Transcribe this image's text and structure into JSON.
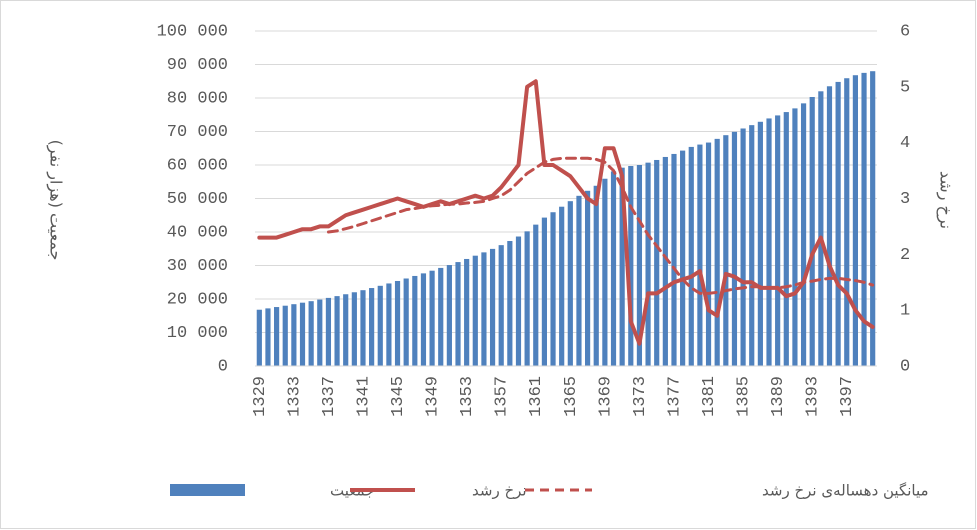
{
  "chart_data": {
    "type": "bar",
    "y_axis_label": "جمعیت (هزار نفر)",
    "y2_axis_label": "نرخ رشد",
    "categories": [
      "1329",
      null,
      null,
      null,
      "1333",
      null,
      null,
      null,
      "1337",
      null,
      null,
      null,
      "1341",
      null,
      null,
      null,
      "1345",
      null,
      null,
      null,
      "1349",
      null,
      null,
      null,
      "1353",
      null,
      null,
      null,
      "1357",
      null,
      null,
      null,
      "1361",
      null,
      null,
      null,
      "1365",
      null,
      null,
      null,
      "1369",
      null,
      null,
      null,
      "1373",
      null,
      null,
      null,
      "1377",
      null,
      null,
      null,
      "1381",
      null,
      null,
      null,
      "1385",
      null,
      null,
      null,
      "1389",
      null,
      null,
      null,
      "1393",
      null,
      null,
      null,
      "1397",
      null,
      null,
      null
    ],
    "series": [
      {
        "name": "جمعیت",
        "type": "bar",
        "color": "#4f81bd",
        "values": [
          16800,
          17200,
          17600,
          18000,
          18450,
          18900,
          19350,
          19830,
          20330,
          20860,
          21420,
          22010,
          22630,
          23270,
          23940,
          24640,
          25380,
          26120,
          26880,
          27650,
          28450,
          29280,
          30130,
          31020,
          31950,
          32930,
          33920,
          34960,
          36080,
          37310,
          38650,
          40200,
          42200,
          44300,
          45900,
          47550,
          49200,
          50800,
          52300,
          53800,
          55900,
          58100,
          59200,
          59700,
          60000,
          60700,
          61500,
          62400,
          63300,
          64300,
          65400,
          66100,
          66700,
          67800,
          68900,
          69900,
          70900,
          71900,
          72900,
          73900,
          74800,
          75800,
          76900,
          78400,
          80300,
          82000,
          83500,
          84800,
          85900,
          86800,
          87500,
          88000
        ]
      },
      {
        "name": "نرخ رشد",
        "type": "line",
        "axis": "y2",
        "color": "#c0504d",
        "dash": false,
        "values": [
          2.3,
          2.3,
          2.3,
          2.35,
          2.4,
          2.45,
          2.45,
          2.5,
          2.5,
          2.6,
          2.7,
          2.75,
          2.8,
          2.85,
          2.9,
          2.95,
          3.0,
          2.95,
          2.9,
          2.85,
          2.9,
          2.95,
          2.9,
          2.95,
          3.0,
          3.05,
          3.0,
          3.05,
          3.2,
          3.4,
          3.6,
          5.0,
          5.1,
          3.6,
          3.6,
          3.5,
          3.4,
          3.2,
          3.0,
          2.9,
          3.9,
          3.9,
          3.4,
          0.8,
          0.4,
          1.3,
          1.3,
          1.4,
          1.5,
          1.55,
          1.6,
          1.7,
          1.0,
          0.9,
          1.65,
          1.6,
          1.5,
          1.5,
          1.4,
          1.4,
          1.4,
          1.25,
          1.3,
          1.5,
          2.0,
          2.3,
          1.8,
          1.45,
          1.3,
          1.0,
          0.8,
          0.7
        ]
      },
      {
        "name": "میانگین دهساله‌ی نرخ رشد",
        "type": "line",
        "axis": "y2",
        "color": "#c0504d",
        "dash": true,
        "values": [
          null,
          null,
          null,
          null,
          null,
          null,
          null,
          null,
          2.4,
          2.42,
          2.46,
          2.5,
          2.55,
          2.6,
          2.65,
          2.7,
          2.75,
          2.8,
          2.82,
          2.85,
          2.87,
          2.88,
          2.9,
          2.9,
          2.92,
          2.93,
          2.95,
          3.0,
          3.05,
          3.15,
          3.3,
          3.45,
          3.55,
          3.65,
          3.7,
          3.72,
          3.72,
          3.72,
          3.72,
          3.7,
          3.65,
          3.5,
          3.2,
          2.85,
          2.6,
          2.35,
          2.15,
          1.95,
          1.75,
          1.55,
          1.4,
          1.3,
          1.3,
          1.32,
          1.35,
          1.38,
          1.4,
          1.42,
          1.42,
          1.4,
          1.4,
          1.42,
          1.45,
          1.5,
          1.52,
          1.55,
          1.57,
          1.57,
          1.55,
          1.53,
          1.5,
          1.45
        ]
      }
    ],
    "ylim": [
      0,
      100000
    ],
    "yticks": [
      {
        "value": 0,
        "label": "0"
      },
      {
        "value": 10000,
        "label": "10 000"
      },
      {
        "value": 20000,
        "label": "20 000"
      },
      {
        "value": 30000,
        "label": "30 000"
      },
      {
        "value": 40000,
        "label": "40 000"
      },
      {
        "value": 50000,
        "label": "50 000"
      },
      {
        "value": 60000,
        "label": "60 000"
      },
      {
        "value": 70000,
        "label": "70 000"
      },
      {
        "value": 80000,
        "label": "80 000"
      },
      {
        "value": 90000,
        "label": "90 000"
      },
      {
        "value": 100000,
        "label": "100 000"
      }
    ],
    "y2lim": [
      0,
      6
    ],
    "y2ticks": [
      0,
      1,
      2,
      3,
      4,
      5,
      6
    ],
    "grid": true,
    "legend": "bottom"
  }
}
